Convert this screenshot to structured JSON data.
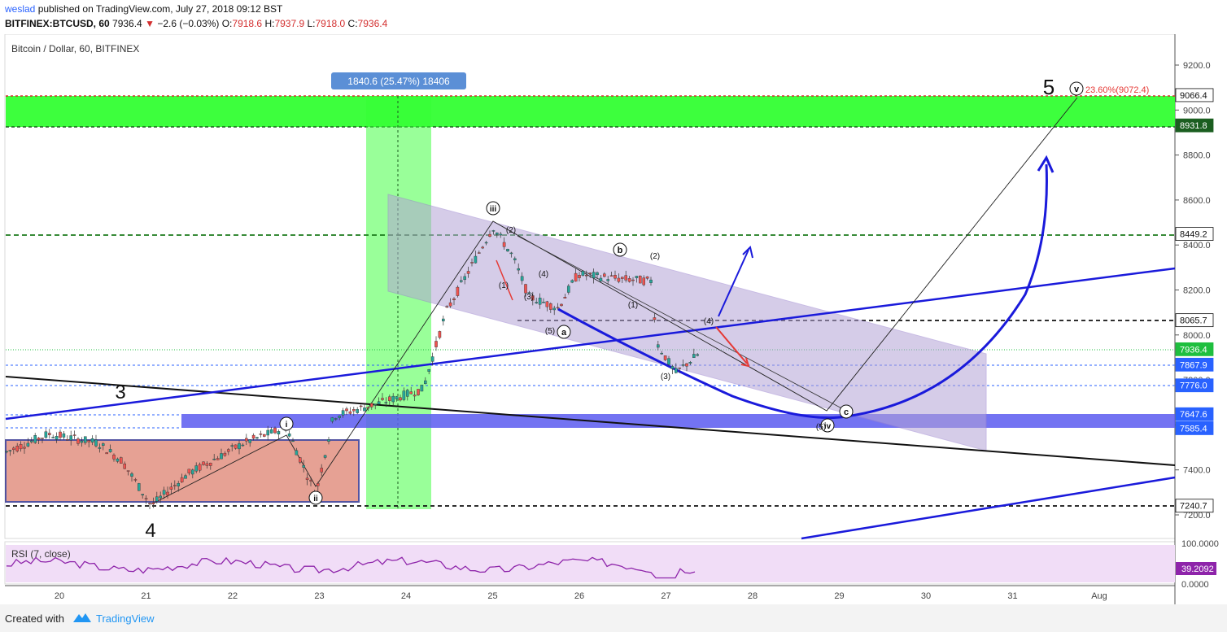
{
  "header": {
    "author": "weslad",
    "published_text": "published on TradingView.com, July 27, 2018 09:12 BST",
    "symbol": "BITFINEX:BTCUSD, 60",
    "last": "7936.4",
    "change_arrow": "▼",
    "change": "−2.6 (−0.03%)",
    "o_label": "O:",
    "o_val": "7918.6",
    "h_label": "H:",
    "h_val": "7937.9",
    "l_label": "L:",
    "l_val": "7918.0",
    "c_label": "C:",
    "c_val": "7936.4"
  },
  "footer": {
    "created_with": "Created with",
    "brand": "TradingView"
  },
  "chart_data": {
    "type": "candlestick",
    "title": "Bitcoin / Dollar, 60, BITFINEX",
    "x_ticks": [
      "20",
      "21",
      "22",
      "23",
      "24",
      "25",
      "26",
      "27",
      "28",
      "29",
      "30",
      "31",
      "Aug"
    ],
    "y_ticks": [
      9200,
      9000,
      8800,
      8600,
      8400,
      8200,
      8000,
      7800,
      7600,
      7400,
      7200
    ],
    "y_range": [
      7150,
      9250
    ],
    "price_labels": [
      {
        "value": "9066.4",
        "color": "#ffffff",
        "text_color": "#111111"
      },
      {
        "value": "8931.8",
        "color": "#1b5e20",
        "text_color": "#ffffff"
      },
      {
        "value": "8449.2",
        "color": "#ffffff",
        "text_color": "#111111"
      },
      {
        "value": "8065.7",
        "color": "#ffffff",
        "text_color": "#111111"
      },
      {
        "value": "7936.4",
        "color": "#1fbf3f",
        "text_color": "#ffffff"
      },
      {
        "value": "7867.9",
        "color": "#2962ff",
        "text_color": "#ffffff"
      },
      {
        "value": "7776.0",
        "color": "#2962ff",
        "text_color": "#ffffff"
      },
      {
        "value": "7647.6",
        "color": "#2962ff",
        "text_color": "#ffffff"
      },
      {
        "value": "7585.4",
        "color": "#2962ff",
        "text_color": "#ffffff"
      },
      {
        "value": "7240.7",
        "color": "#ffffff",
        "text_color": "#111111"
      }
    ],
    "measure_label": "1840.6 (25.47%) 18406",
    "fib_label": "23.60%(9072.4)",
    "wave_labels": {
      "big_5": "5",
      "big_3": "3",
      "big_4": "4",
      "circ_v": "v",
      "circ_iii": "iii",
      "circ_i": "i",
      "circ_ii": "ii",
      "circ_iv": "iv",
      "circ_a": "a",
      "circ_b": "b",
      "circ_c": "c",
      "p1": "(1)",
      "p2": "(2)",
      "p3": "(3)",
      "p4": "(4)",
      "p5": "(5)"
    },
    "rsi": {
      "label": "RSI (7, close)",
      "ticks": [
        "100.0000",
        "0.0000"
      ],
      "current": "39.2092",
      "range": [
        0,
        100
      ]
    },
    "colors": {
      "up": "#26a69a",
      "down": "#ef5350",
      "green_zone": "#00e600",
      "channel": "#c5b7e0",
      "blue": "#1a1adb",
      "rsi_line": "#8e24aa"
    }
  }
}
